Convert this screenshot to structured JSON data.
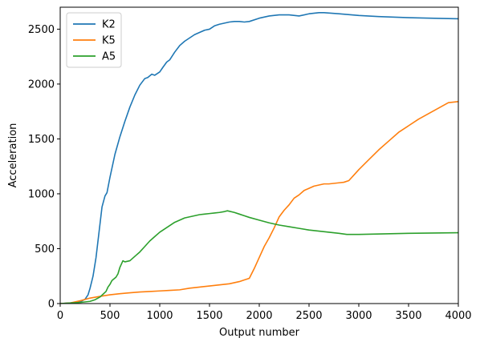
{
  "chart_data": {
    "type": "line",
    "title": "",
    "xlabel": "Output number",
    "ylabel": "Acceleration",
    "xlim": [
      0,
      4000
    ],
    "ylim": [
      0,
      2700
    ],
    "xticks": [
      0,
      500,
      1000,
      1500,
      2000,
      2500,
      3000,
      3500,
      4000
    ],
    "yticks": [
      0,
      500,
      1000,
      1500,
      2000,
      2500
    ],
    "grid": false,
    "legend_position": "top-left",
    "series": [
      {
        "name": "K2",
        "color": "#1f77b4",
        "x": [
          0,
          100,
          200,
          250,
          280,
          300,
          330,
          360,
          390,
          420,
          450,
          470,
          500,
          550,
          600,
          650,
          700,
          750,
          800,
          850,
          880,
          920,
          950,
          1000,
          1030,
          1070,
          1100,
          1150,
          1200,
          1250,
          1300,
          1350,
          1400,
          1450,
          1500,
          1550,
          1600,
          1650,
          1700,
          1750,
          1800,
          1850,
          1900,
          2000,
          2100,
          2200,
          2300,
          2400,
          2500,
          2600,
          2650,
          2800,
          3000,
          3200,
          3500,
          3800,
          4000
        ],
        "y": [
          0,
          5,
          15,
          40,
          80,
          140,
          250,
          420,
          650,
          880,
          980,
          1010,
          1150,
          1360,
          1520,
          1660,
          1790,
          1900,
          1990,
          2050,
          2060,
          2090,
          2080,
          2110,
          2150,
          2200,
          2220,
          2290,
          2350,
          2390,
          2420,
          2450,
          2470,
          2490,
          2500,
          2530,
          2545,
          2555,
          2565,
          2570,
          2570,
          2565,
          2570,
          2600,
          2620,
          2630,
          2630,
          2620,
          2640,
          2650,
          2650,
          2640,
          2625,
          2615,
          2605,
          2598,
          2595
        ]
      },
      {
        "name": "K5",
        "color": "#ff7f0e",
        "x": [
          0,
          100,
          200,
          300,
          400,
          500,
          600,
          700,
          800,
          900,
          1000,
          1100,
          1200,
          1300,
          1400,
          1500,
          1600,
          1700,
          1800,
          1850,
          1900,
          1950,
          2000,
          2050,
          2100,
          2150,
          2200,
          2250,
          2300,
          2350,
          2400,
          2450,
          2500,
          2550,
          2600,
          2650,
          2700,
          2800,
          2850,
          2900,
          2950,
          3000,
          3100,
          3200,
          3300,
          3400,
          3500,
          3600,
          3700,
          3800,
          3900,
          4000
        ],
        "y": [
          0,
          5,
          25,
          50,
          65,
          80,
          90,
          98,
          105,
          110,
          115,
          120,
          125,
          140,
          150,
          160,
          170,
          180,
          200,
          215,
          230,
          320,
          420,
          520,
          600,
          690,
          790,
          850,
          900,
          960,
          990,
          1030,
          1050,
          1070,
          1080,
          1090,
          1090,
          1100,
          1105,
          1120,
          1170,
          1220,
          1310,
          1400,
          1480,
          1560,
          1620,
          1680,
          1730,
          1780,
          1830,
          1840
        ]
      },
      {
        "name": "A5",
        "color": "#2ca02c",
        "x": [
          0,
          100,
          200,
          300,
          350,
          400,
          430,
          460,
          480,
          500,
          520,
          560,
          580,
          600,
          630,
          650,
          700,
          750,
          800,
          850,
          900,
          950,
          1000,
          1050,
          1100,
          1150,
          1200,
          1250,
          1300,
          1350,
          1400,
          1450,
          1500,
          1550,
          1600,
          1650,
          1680,
          1750,
          1800,
          1850,
          1900,
          2000,
          2100,
          2200,
          2300,
          2400,
          2500,
          2600,
          2700,
          2800,
          2880,
          3000,
          3500,
          4000
        ],
        "y": [
          0,
          5,
          10,
          20,
          35,
          60,
          85,
          110,
          150,
          175,
          210,
          240,
          270,
          330,
          390,
          380,
          390,
          430,
          470,
          520,
          570,
          610,
          650,
          680,
          710,
          740,
          760,
          780,
          790,
          800,
          810,
          815,
          820,
          825,
          830,
          838,
          845,
          830,
          815,
          800,
          785,
          760,
          735,
          715,
          700,
          685,
          670,
          660,
          650,
          640,
          630,
          630,
          640,
          645
        ]
      }
    ]
  }
}
